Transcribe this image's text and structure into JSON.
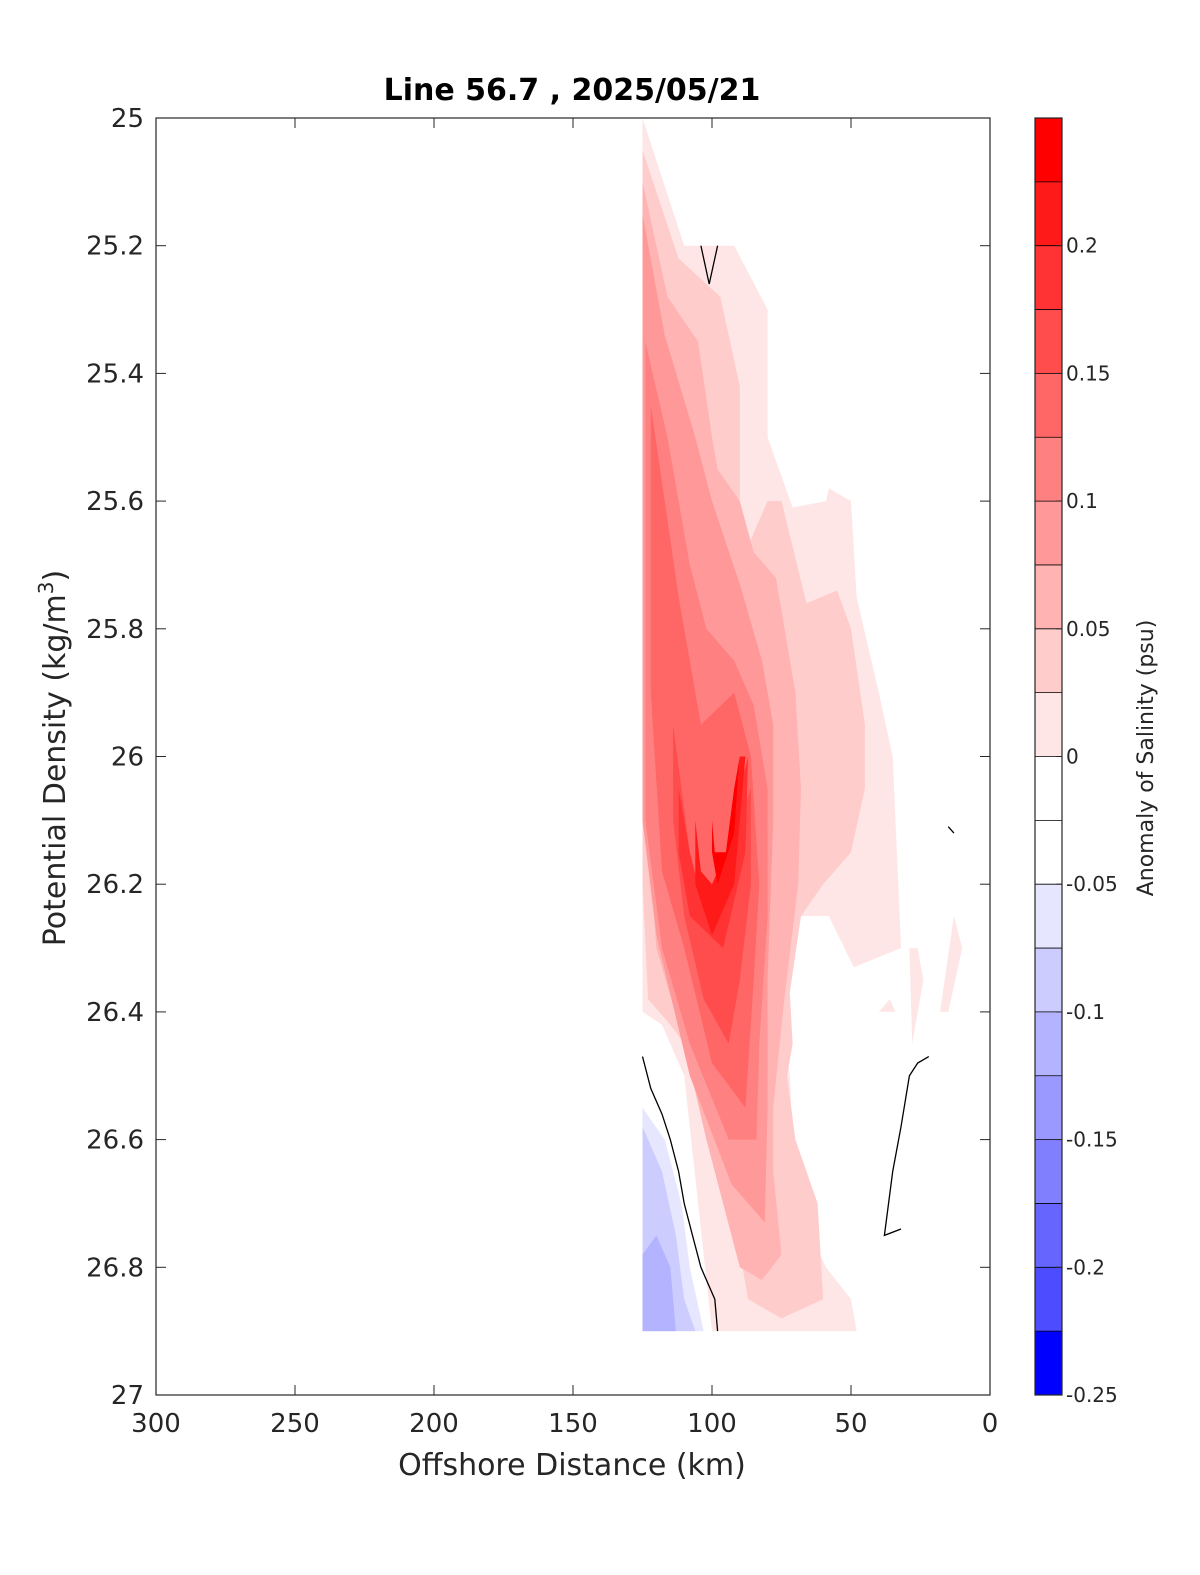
{
  "chart_data": {
    "type": "contour",
    "title": "Line 56.7 , 2025/05/21",
    "xlabel": "Offshore Distance (km)",
    "ylabel_main": "Potential Density (kg/m",
    "ylabel_sup": "3",
    "ylabel_close": ")",
    "xlim": [
      300,
      0
    ],
    "ylim": [
      25,
      27
    ],
    "x_reversed": true,
    "y_reversed": true,
    "grid": false,
    "x_ticks": [
      "300",
      "250",
      "200",
      "150",
      "100",
      "50",
      "0"
    ],
    "x_tick_values": [
      300,
      250,
      200,
      150,
      100,
      50,
      0
    ],
    "y_ticks": [
      "25",
      "25.2",
      "25.4",
      "25.6",
      "25.8",
      "26",
      "26.2",
      "26.4",
      "26.6",
      "26.8",
      "27"
    ],
    "y_tick_values": [
      25,
      25.2,
      25.4,
      25.6,
      25.8,
      26,
      26.2,
      26.4,
      26.6,
      26.8,
      27
    ],
    "colorbar": {
      "title": "Anomaly of Salinity (psu)",
      "range": [
        -0.25,
        0.25
      ],
      "labels": [
        "0.2",
        "0.15",
        "0.1",
        "0.05",
        "0",
        "-0.05",
        "-0.1",
        "-0.15",
        "-0.2",
        "-0.25"
      ],
      "label_values": [
        0.2,
        0.15,
        0.1,
        0.05,
        0,
        -0.05,
        -0.1,
        -0.15,
        -0.2,
        -0.25
      ],
      "levels": [
        {
          "low": 0.225,
          "high": 0.25,
          "color": "#ff0000"
        },
        {
          "low": 0.2,
          "high": 0.225,
          "color": "#ff1a1a"
        },
        {
          "low": 0.175,
          "high": 0.2,
          "color": "#ff3333"
        },
        {
          "low": 0.15,
          "high": 0.175,
          "color": "#ff4d4d"
        },
        {
          "low": 0.125,
          "high": 0.15,
          "color": "#ff6666"
        },
        {
          "low": 0.1,
          "high": 0.125,
          "color": "#ff8080"
        },
        {
          "low": 0.075,
          "high": 0.1,
          "color": "#ff9999"
        },
        {
          "low": 0.05,
          "high": 0.075,
          "color": "#ffb3b3"
        },
        {
          "low": 0.025,
          "high": 0.05,
          "color": "#ffcccc"
        },
        {
          "low": 0.0,
          "high": 0.025,
          "color": "#ffe6e6"
        },
        {
          "low": -0.025,
          "high": 0.0,
          "color": "#ffffff"
        },
        {
          "low": -0.05,
          "high": -0.025,
          "color": "#ffffff"
        },
        {
          "low": -0.075,
          "high": -0.05,
          "color": "#e6e6ff"
        },
        {
          "low": -0.1,
          "high": -0.075,
          "color": "#ccccff"
        },
        {
          "low": -0.125,
          "high": -0.1,
          "color": "#b3b3ff"
        },
        {
          "low": -0.15,
          "high": -0.125,
          "color": "#9999ff"
        },
        {
          "low": -0.175,
          "high": -0.15,
          "color": "#8080ff"
        },
        {
          "low": -0.2,
          "high": -0.175,
          "color": "#6666ff"
        },
        {
          "low": -0.225,
          "high": -0.2,
          "color": "#4d4dff"
        },
        {
          "low": -0.25,
          "high": -0.225,
          "color": "#0000ff"
        }
      ]
    },
    "regions": [
      {
        "name": "anomaly-0.025",
        "value": 0.025,
        "color": "#ffe6e6",
        "points": [
          [
            125,
            25.0
          ],
          [
            110,
            25.2
          ],
          [
            101,
            25.2
          ],
          [
            92,
            25.2
          ],
          [
            80,
            25.3
          ],
          [
            80,
            25.5
          ],
          [
            71,
            25.61
          ],
          [
            59,
            25.6
          ],
          [
            58,
            25.58
          ],
          [
            50,
            25.6
          ],
          [
            48,
            25.75
          ],
          [
            40,
            25.9
          ],
          [
            35,
            26.0
          ],
          [
            33,
            26.2
          ],
          [
            32,
            26.3
          ],
          [
            49,
            26.33
          ],
          [
            58,
            26.25
          ],
          [
            68,
            26.25
          ],
          [
            75,
            26.4
          ],
          [
            72,
            26.5
          ],
          [
            70,
            26.7
          ],
          [
            59,
            26.8
          ],
          [
            50,
            26.85
          ],
          [
            48,
            26.9
          ],
          [
            70,
            26.9
          ],
          [
            85,
            26.9
          ],
          [
            100,
            26.9
          ],
          [
            110,
            26.5
          ],
          [
            118,
            26.42
          ],
          [
            125,
            26.4
          ]
        ]
      },
      {
        "name": "anomaly-0.05",
        "value": 0.05,
        "color": "#ffcccc",
        "points": [
          [
            125,
            25.05
          ],
          [
            112,
            25.22
          ],
          [
            97,
            25.28
          ],
          [
            90,
            25.42
          ],
          [
            90,
            25.7
          ],
          [
            80,
            25.6
          ],
          [
            75,
            25.6
          ],
          [
            66,
            25.76
          ],
          [
            55,
            25.74
          ],
          [
            50,
            25.8
          ],
          [
            45,
            25.95
          ],
          [
            45,
            26.05
          ],
          [
            50,
            26.15
          ],
          [
            60,
            26.2
          ],
          [
            68,
            26.25
          ],
          [
            72,
            26.37
          ],
          [
            71,
            26.45
          ],
          [
            73,
            26.5
          ],
          [
            70,
            26.6
          ],
          [
            62,
            26.7
          ],
          [
            60,
            26.85
          ],
          [
            75,
            26.88
          ],
          [
            87,
            26.85
          ],
          [
            95,
            26.65
          ],
          [
            105,
            26.48
          ],
          [
            115,
            26.42
          ],
          [
            123,
            26.38
          ],
          [
            125,
            26.2
          ]
        ]
      },
      {
        "name": "anomaly-0.075",
        "value": 0.075,
        "color": "#ffb3b3",
        "points": [
          [
            125,
            25.1
          ],
          [
            116,
            25.28
          ],
          [
            105,
            25.35
          ],
          [
            100,
            25.5
          ],
          [
            98,
            25.55
          ],
          [
            90,
            25.6
          ],
          [
            85,
            25.68
          ],
          [
            77,
            25.72
          ],
          [
            70,
            25.9
          ],
          [
            68,
            26.05
          ],
          [
            69,
            26.2
          ],
          [
            74,
            26.38
          ],
          [
            78,
            26.55
          ],
          [
            78,
            26.65
          ],
          [
            75,
            26.78
          ],
          [
            82,
            26.82
          ],
          [
            90,
            26.8
          ],
          [
            102,
            26.6
          ],
          [
            110,
            26.45
          ],
          [
            120,
            26.3
          ],
          [
            125,
            26.0
          ]
        ]
      },
      {
        "name": "anomaly-0.1",
        "value": 0.1,
        "color": "#ff9999",
        "points": [
          [
            125,
            25.15
          ],
          [
            117,
            25.34
          ],
          [
            106,
            25.5
          ],
          [
            100,
            25.6
          ],
          [
            90,
            25.73
          ],
          [
            82,
            25.85
          ],
          [
            78,
            25.95
          ],
          [
            78,
            26.1
          ],
          [
            80,
            26.35
          ],
          [
            80,
            26.55
          ],
          [
            81,
            26.73
          ],
          [
            93,
            26.67
          ],
          [
            108,
            26.5
          ],
          [
            120,
            26.28
          ],
          [
            125,
            26.1
          ]
        ]
      },
      {
        "name": "anomaly-0.125",
        "value": 0.125,
        "color": "#ff8080",
        "points": [
          [
            124,
            25.35
          ],
          [
            116,
            25.5
          ],
          [
            108,
            25.7
          ],
          [
            102,
            25.8
          ],
          [
            92,
            25.85
          ],
          [
            85,
            25.92
          ],
          [
            80,
            26.05
          ],
          [
            80,
            26.25
          ],
          [
            83,
            26.45
          ],
          [
            84,
            26.6
          ],
          [
            94,
            26.6
          ],
          [
            108,
            26.45
          ],
          [
            118,
            26.3
          ],
          [
            124,
            26.1
          ]
        ]
      },
      {
        "name": "anomaly-0.15",
        "value": 0.15,
        "color": "#ff6666",
        "points": [
          [
            122,
            25.45
          ],
          [
            112,
            25.75
          ],
          [
            104,
            25.95
          ],
          [
            92,
            25.9
          ],
          [
            86,
            26.0
          ],
          [
            83,
            26.2
          ],
          [
            85,
            26.35
          ],
          [
            88,
            26.55
          ],
          [
            100,
            26.48
          ],
          [
            110,
            26.3
          ],
          [
            118,
            26.18
          ],
          [
            122,
            25.9
          ]
        ]
      },
      {
        "name": "anomaly-0.175",
        "value": 0.175,
        "color": "#ff4d4d",
        "points": [
          [
            114,
            25.95
          ],
          [
            108,
            26.15
          ],
          [
            102,
            26.25
          ],
          [
            92,
            26.2
          ],
          [
            90,
            26.1
          ],
          [
            86,
            26.05
          ],
          [
            86,
            26.2
          ],
          [
            90,
            26.35
          ],
          [
            94,
            26.45
          ],
          [
            103,
            26.38
          ],
          [
            110,
            26.25
          ],
          [
            114,
            26.1
          ]
        ]
      },
      {
        "name": "anomaly-0.2",
        "value": 0.2,
        "color": "#ff3333",
        "points": [
          [
            112,
            26.05
          ],
          [
            108,
            26.15
          ],
          [
            104,
            26.22
          ],
          [
            96,
            26.2
          ],
          [
            90,
            26.05
          ],
          [
            87,
            26.0
          ],
          [
            88,
            26.15
          ],
          [
            96,
            26.3
          ],
          [
            108,
            26.25
          ],
          [
            112,
            26.15
          ]
        ]
      },
      {
        "name": "anomaly-0.225",
        "value": 0.225,
        "color": "#ff1a1a",
        "points": [
          [
            106,
            26.1
          ],
          [
            104,
            26.18
          ],
          [
            100,
            26.2
          ],
          [
            92,
            26.12
          ],
          [
            90,
            26.0
          ],
          [
            88,
            26.0
          ],
          [
            92,
            26.2
          ],
          [
            100,
            26.28
          ],
          [
            106,
            26.2
          ]
        ]
      },
      {
        "name": "anomaly-0.25",
        "value": 0.25,
        "color": "#ff0000",
        "points": [
          [
            100,
            26.1
          ],
          [
            99,
            26.15
          ],
          [
            95,
            26.15
          ],
          [
            92,
            26.05
          ],
          [
            90,
            26.0
          ],
          [
            92,
            26.12
          ],
          [
            98,
            26.2
          ],
          [
            100,
            26.15
          ]
        ]
      },
      {
        "name": "anomaly-neg-0.05",
        "value": -0.05,
        "color": "#e6e6ff",
        "points": [
          [
            125,
            26.55
          ],
          [
            117,
            26.6
          ],
          [
            111,
            26.7
          ],
          [
            108,
            26.8
          ],
          [
            103,
            26.9
          ],
          [
            125,
            26.9
          ]
        ]
      },
      {
        "name": "anomaly-neg-0.075",
        "value": -0.075,
        "color": "#ccccff",
        "points": [
          [
            125,
            26.58
          ],
          [
            118,
            26.65
          ],
          [
            113,
            26.75
          ],
          [
            110,
            26.85
          ],
          [
            106,
            26.9
          ],
          [
            125,
            26.9
          ]
        ]
      },
      {
        "name": "anomaly-neg-0.1",
        "value": -0.1,
        "color": "#b3b3ff",
        "points": [
          [
            125,
            26.78
          ],
          [
            120,
            26.75
          ],
          [
            115,
            26.8
          ],
          [
            113,
            26.9
          ],
          [
            125,
            26.9
          ]
        ]
      },
      {
        "name": "patch-a",
        "value": 0.025,
        "color": "#ffe6e6",
        "points": [
          [
            29,
            26.3
          ],
          [
            26,
            26.3
          ],
          [
            24,
            26.35
          ],
          [
            28,
            26.45
          ]
        ]
      },
      {
        "name": "patch-b",
        "value": 0.025,
        "color": "#ffe6e6",
        "points": [
          [
            40,
            26.4
          ],
          [
            36,
            26.38
          ],
          [
            34,
            26.4
          ]
        ]
      },
      {
        "name": "patch-c",
        "value": 0.025,
        "color": "#ffe6e6",
        "points": [
          [
            15,
            26.4
          ],
          [
            10,
            26.3
          ],
          [
            13,
            26.25
          ],
          [
            18,
            26.4
          ]
        ]
      }
    ],
    "zero_contours": [
      {
        "name": "zero-contour-top",
        "points": [
          [
            104,
            25.2
          ],
          [
            101,
            25.26
          ],
          [
            98,
            25.2
          ]
        ]
      },
      {
        "name": "zero-contour-west",
        "points": [
          [
            125,
            26.47
          ],
          [
            122,
            26.52
          ],
          [
            118,
            26.56
          ],
          [
            115,
            26.6
          ],
          [
            112,
            26.65
          ],
          [
            110,
            26.7
          ],
          [
            107,
            26.75
          ],
          [
            104,
            26.8
          ],
          [
            99,
            26.85
          ],
          [
            98,
            26.9
          ]
        ]
      },
      {
        "name": "zero-contour-east",
        "points": [
          [
            22,
            26.47
          ],
          [
            26,
            26.48
          ],
          [
            29,
            26.5
          ],
          [
            32,
            26.58
          ],
          [
            35,
            26.65
          ],
          [
            38,
            26.75
          ],
          [
            32,
            26.74
          ]
        ]
      },
      {
        "name": "zero-contour-small",
        "points": [
          [
            15,
            26.11
          ],
          [
            13,
            26.12
          ]
        ]
      }
    ]
  }
}
